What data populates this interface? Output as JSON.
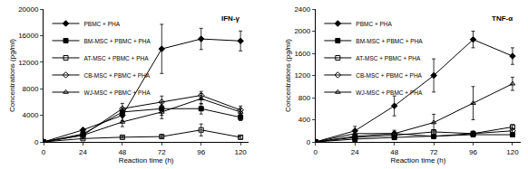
{
  "chart_data": [
    {
      "type": "line",
      "title": "IFN-γ",
      "x_label": "Reaction time (h)",
      "y_label": "Concentrations (pg/ml)",
      "x": [
        0,
        24,
        48,
        72,
        96,
        120
      ],
      "xlim": [
        0,
        125
      ],
      "xticks": [
        0,
        24,
        48,
        72,
        96,
        120
      ],
      "ylim": [
        0,
        20000
      ],
      "yticks": [
        0,
        4000,
        8000,
        12000,
        16000,
        20000
      ],
      "grid": false,
      "legend": "upper left",
      "series": [
        {
          "name": "PBMC + PHA",
          "color": "#000000",
          "marker": "diamond",
          "values": [
            0,
            1800,
            4000,
            14000,
            15500,
            15200
          ],
          "errors": [
            0,
            200,
            800,
            3700,
            1600,
            1500
          ]
        },
        {
          "name": "BM-MSC + PBMC + PHA",
          "color": "#000000",
          "marker": "square",
          "values": [
            0,
            1200,
            4500,
            5000,
            5000,
            3700
          ],
          "errors": [
            0,
            150,
            600,
            1000,
            800,
            500
          ]
        },
        {
          "name": "AT-MSC + PBMC + PHA",
          "color": "#000000",
          "marker": "square-open",
          "values": [
            0,
            500,
            700,
            800,
            1800,
            700
          ],
          "errors": [
            0,
            100,
            150,
            200,
            900,
            200
          ]
        },
        {
          "name": "CB-MSC + PBMC + PHA",
          "color": "#000000",
          "marker": "diamond-open",
          "values": [
            0,
            1000,
            5000,
            6000,
            7000,
            4800
          ],
          "errors": [
            0,
            200,
            800,
            900,
            600,
            600
          ]
        },
        {
          "name": "WJ-MSC + PBMC + PHA",
          "color": "#000000",
          "marker": "triangle-up-open",
          "values": [
            0,
            1000,
            3000,
            4500,
            6500,
            4500
          ],
          "errors": [
            0,
            200,
            700,
            1000,
            800,
            500
          ]
        }
      ]
    },
    {
      "type": "line",
      "title": "TNF-α",
      "x_label": "Reaction time (h)",
      "y_label": "Concentrations (pg/ml)",
      "x": [
        0,
        24,
        48,
        72,
        96,
        120
      ],
      "xlim": [
        0,
        125
      ],
      "xticks": [
        0,
        24,
        48,
        72,
        96,
        120
      ],
      "ylim": [
        0,
        2400
      ],
      "yticks": [
        0,
        400,
        800,
        1200,
        1600,
        2000,
        2400
      ],
      "grid": false,
      "legend": "upper left",
      "series": [
        {
          "name": "PBMC + PHA",
          "color": "#000000",
          "marker": "diamond",
          "values": [
            0,
            200,
            650,
            1200,
            1850,
            1550
          ],
          "errors": [
            0,
            80,
            180,
            300,
            150,
            150
          ]
        },
        {
          "name": "BM-MSC + PBMC + PHA",
          "color": "#000000",
          "marker": "square",
          "values": [
            0,
            50,
            80,
            100,
            130,
            130
          ],
          "errors": [
            0,
            20,
            30,
            30,
            30,
            30
          ]
        },
        {
          "name": "AT-MSC + PBMC + PHA",
          "color": "#000000",
          "marker": "square-open",
          "values": [
            0,
            80,
            120,
            180,
            150,
            270
          ],
          "errors": [
            0,
            30,
            40,
            40,
            40,
            40
          ]
        },
        {
          "name": "CB-MSC + PBMC + PHA",
          "color": "#000000",
          "marker": "diamond-open",
          "values": [
            0,
            100,
            150,
            100,
            150,
            200
          ],
          "errors": [
            0,
            30,
            40,
            30,
            40,
            40
          ]
        },
        {
          "name": "WJ-MSC + PBMC + PHA",
          "color": "#000000",
          "marker": "triangle-up-open",
          "values": [
            0,
            150,
            150,
            350,
            700,
            1050
          ],
          "errors": [
            0,
            50,
            60,
            150,
            300,
            120
          ]
        }
      ]
    }
  ]
}
